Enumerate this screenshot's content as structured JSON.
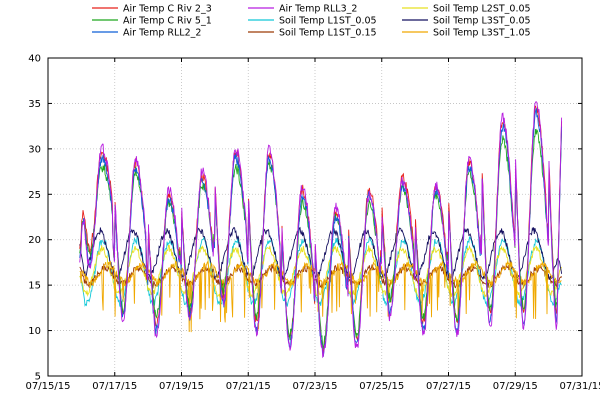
{
  "chart_data": {
    "type": "line",
    "title": "",
    "xlabel": "",
    "ylabel": "",
    "xlim": [
      "07/15/15",
      "07/31/15"
    ],
    "ylim": [
      5,
      40
    ],
    "grid": true,
    "legend_placement": "top",
    "x_ticks": [
      "07/15/15",
      "07/17/15",
      "07/19/15",
      "07/21/15",
      "07/23/15",
      "07/25/15",
      "07/27/15",
      "07/29/15",
      "07/31/15"
    ],
    "y_ticks": [
      "5",
      "10",
      "15",
      "20",
      "25",
      "30",
      "35",
      "40"
    ],
    "x_range_days": [
      0,
      16
    ],
    "data_start_day": 0.95,
    "data_end_day": 15.4,
    "series": [
      {
        "name": "Air Temp C Riv 2_3",
        "color": "#e8221b",
        "kind": "air",
        "daily_max": [
          29.5,
          28.5,
          25.0,
          27.0,
          29.5,
          29.5,
          25.5,
          23.0,
          25.5,
          27.0,
          26.0,
          28.5,
          33.0,
          34.5,
          34.5
        ],
        "daily_min": [
          19.0,
          12.0,
          11.0,
          12.0,
          14.0,
          11.0,
          9.0,
          8.0,
          9.0,
          13.0,
          11.0,
          11.0,
          12.0,
          12.0,
          12.0
        ],
        "start": 19.0,
        "end": 34.0
      },
      {
        "name": "Air Temp C Riv 5_1",
        "color": "#1fa81f",
        "kind": "air",
        "daily_max": [
          28.0,
          27.5,
          24.0,
          26.0,
          28.0,
          28.5,
          24.0,
          22.5,
          24.0,
          25.5,
          25.0,
          27.5,
          31.0,
          32.0,
          32.0
        ],
        "daily_min": [
          18.5,
          12.5,
          11.5,
          12.5,
          14.5,
          11.5,
          9.5,
          8.5,
          9.5,
          13.5,
          11.5,
          11.5,
          12.5,
          12.5,
          12.5
        ],
        "start": 18.5,
        "end": 33.0
      },
      {
        "name": "Air Temp RLL2_2",
        "color": "#0f5fd8",
        "kind": "air",
        "daily_max": [
          29.0,
          28.0,
          24.5,
          26.5,
          29.0,
          29.0,
          25.0,
          22.5,
          25.0,
          26.0,
          25.5,
          28.0,
          32.5,
          34.0,
          34.0
        ],
        "daily_min": [
          17.5,
          11.5,
          10.0,
          11.5,
          13.0,
          10.0,
          8.5,
          7.5,
          8.5,
          12.0,
          10.0,
          10.0,
          11.0,
          11.0,
          11.0
        ],
        "start": 18.0,
        "end": 33.5
      },
      {
        "name": "Air Temp RLL3_2",
        "color": "#b81ee0",
        "kind": "air",
        "daily_max": [
          30.0,
          29.0,
          25.5,
          27.5,
          30.0,
          30.0,
          26.0,
          23.5,
          25.0,
          26.5,
          26.0,
          29.0,
          33.5,
          35.0,
          35.0
        ],
        "daily_min": [
          17.0,
          11.0,
          9.5,
          11.0,
          13.0,
          9.5,
          8.0,
          7.5,
          8.0,
          11.5,
          9.5,
          9.5,
          10.5,
          10.5,
          10.5
        ],
        "start": 17.5,
        "end": 34.5
      },
      {
        "name": "Soil Temp L1ST_0.05",
        "color": "#12c8d8",
        "kind": "soil",
        "mean": 16.5,
        "amp": 3.5,
        "phase": 0.15,
        "start": 16.0,
        "end": 15.0
      },
      {
        "name": "Soil Temp L1ST_0.15",
        "color": "#9c3a06",
        "kind": "soil",
        "mean": 16.0,
        "amp": 0.9,
        "phase": 0.2,
        "start": 17.0,
        "end": 16.0
      },
      {
        "name": "Soil Temp L2ST_0.05",
        "color": "#e8e020",
        "kind": "soil",
        "mean": 16.5,
        "amp": 2.5,
        "phase": 0.12,
        "start": 16.0,
        "end": 17.0
      },
      {
        "name": "Soil Temp L3ST_0.05",
        "color": "#151060",
        "kind": "soil",
        "mean": 18.5,
        "amp": 2.5,
        "phase": 0.05,
        "start": 19.5,
        "end": 16.0
      },
      {
        "name": "Soil Temp L3ST_1.05",
        "color": "#f0a800",
        "kind": "soil",
        "mean": 16.3,
        "amp": 1.0,
        "phase": 0.3,
        "start": 16.5,
        "end": 15.5
      }
    ]
  }
}
